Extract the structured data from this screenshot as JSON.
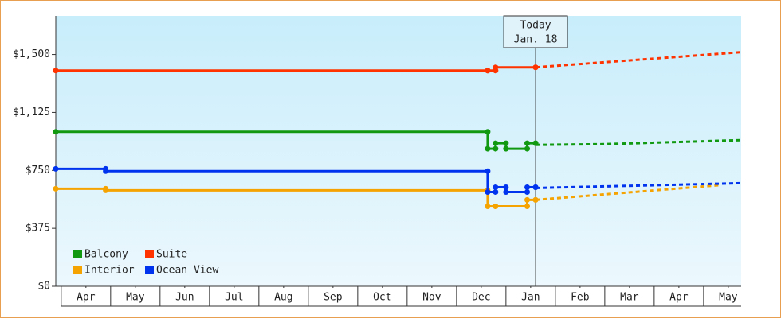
{
  "chart_data": {
    "type": "step-line",
    "today": {
      "label": [
        "Today",
        "Jan. 18"
      ],
      "x": 9.6
    },
    "xlim": [
      -0.11,
      13.76
    ],
    "xticks": [
      {
        "value": 0.5,
        "label": "Apr"
      },
      {
        "value": 1.5,
        "label": "May"
      },
      {
        "value": 2.5,
        "label": "Jun"
      },
      {
        "value": 3.5,
        "label": "Jul"
      },
      {
        "value": 4.5,
        "label": "Aug"
      },
      {
        "value": 5.5,
        "label": "Sep"
      },
      {
        "value": 6.5,
        "label": "Oct"
      },
      {
        "value": 7.5,
        "label": "Nov"
      },
      {
        "value": 8.5,
        "label": "Dec"
      },
      {
        "value": 9.5,
        "label": "Jan"
      },
      {
        "value": 10.5,
        "label": "Feb"
      },
      {
        "value": 11.5,
        "label": "Mar"
      },
      {
        "value": 12.5,
        "label": "Apr"
      },
      {
        "value": 13.5,
        "label": "May"
      }
    ],
    "ylim": [
      0,
      1750
    ],
    "yticks": [
      {
        "value": 0,
        "label": "$0"
      },
      {
        "value": 375,
        "label": "$375"
      },
      {
        "value": 750,
        "label": "$750"
      },
      {
        "value": 1125,
        "label": "$1,125"
      },
      {
        "value": 1500,
        "label": "$1,500"
      }
    ],
    "grid": false,
    "legend": "bottom-left",
    "series": [
      {
        "name": "Balcony",
        "color": "#119911",
        "x": [
          -0.11,
          8.63,
          8.79,
          9.0,
          9.43,
          9.6
        ],
        "values": [
          1000,
          890,
          926,
          890,
          926,
          926
        ],
        "forecast": {
          "x": [
            9.6,
            11.0,
            13.76
          ],
          "values": [
            915,
            920,
            946
          ]
        }
      },
      {
        "name": "Suite",
        "color": "#ff3300",
        "x": [
          -0.11,
          8.63,
          8.79,
          9.6
        ],
        "values": [
          1396,
          1396,
          1417,
          1417
        ],
        "forecast": {
          "x": [
            9.6,
            13.76
          ],
          "values": [
            1417,
            1515
          ]
        }
      },
      {
        "name": "Interior",
        "color": "#f5a300",
        "x": [
          -0.11,
          0.9,
          8.63,
          8.79,
          9.43,
          9.6
        ],
        "values": [
          631,
          621,
          517,
          517,
          559,
          559
        ],
        "forecast": {
          "x": [
            9.6,
            13.35
          ],
          "values": [
            559,
            655
          ]
        }
      },
      {
        "name": "Ocean View",
        "color": "#0033ee",
        "x": [
          -0.11,
          0.9,
          8.63,
          8.79,
          9.0,
          9.43,
          9.6
        ],
        "values": [
          760,
          745,
          610,
          641,
          610,
          641,
          641
        ],
        "forecast": {
          "x": [
            9.6,
            13.76
          ],
          "values": [
            636,
            667
          ]
        }
      }
    ]
  }
}
